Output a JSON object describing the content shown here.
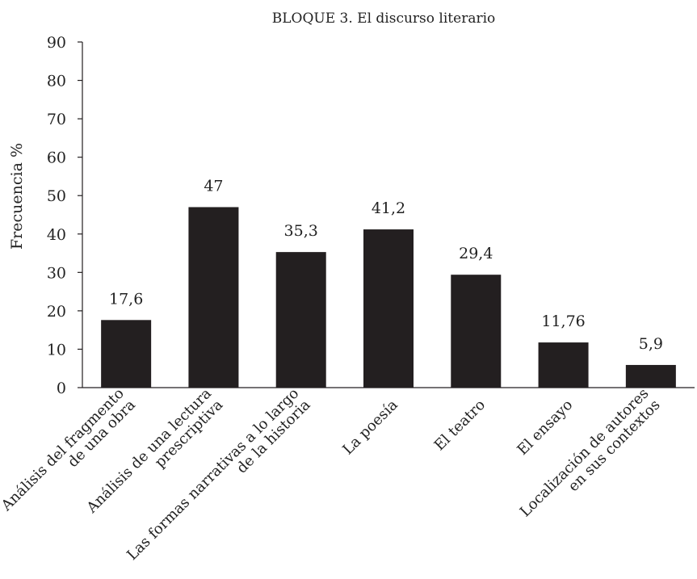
{
  "chart_data": {
    "type": "bar",
    "title": "BLOQUE 3. El discurso literario",
    "xlabel": "",
    "ylabel": "Frecuencia %",
    "ylim": [
      0,
      90
    ],
    "yticks": [
      "0",
      "10",
      "20",
      "30",
      "40",
      "50",
      "60",
      "70",
      "80",
      "90"
    ],
    "grid": false,
    "categories": [
      [
        "Análisis del fragmento",
        "de una obra"
      ],
      [
        "Análisis de una lectura",
        "prescriptiva"
      ],
      [
        "Las formas narrativas a lo largo",
        "de la historia"
      ],
      [
        "La poesía"
      ],
      [
        "El teatro"
      ],
      [
        "El ensayo"
      ],
      [
        "Localización de autores",
        "en sus contextos"
      ]
    ],
    "values": [
      17.6,
      47,
      35.3,
      41.2,
      29.4,
      11.76,
      5.9
    ],
    "value_labels": [
      "17,6",
      "47",
      "35,3",
      "41,2",
      "29,4",
      "11,76",
      "5,9"
    ],
    "bar_color": "#231f20"
  }
}
